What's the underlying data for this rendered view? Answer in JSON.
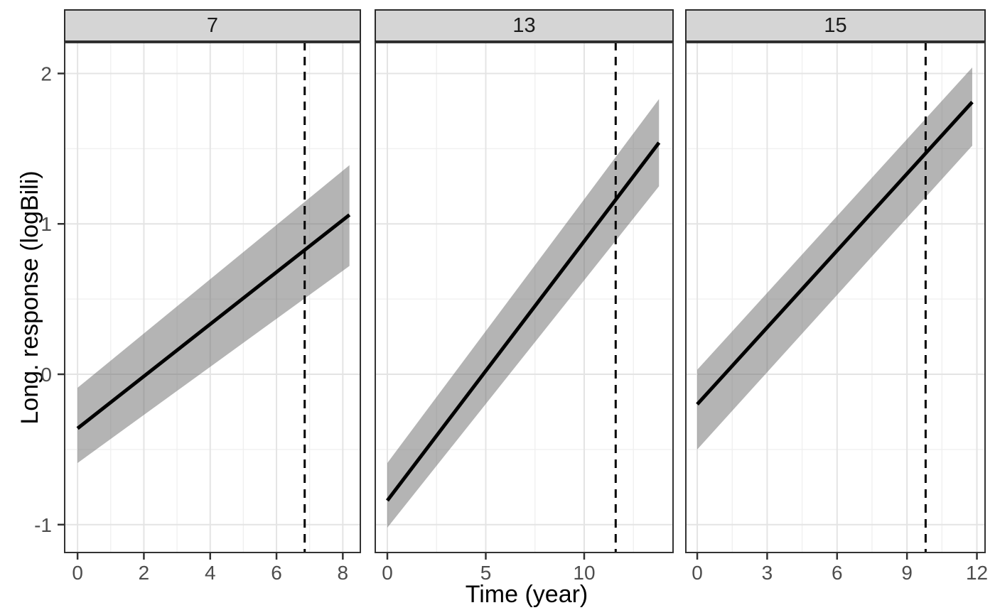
{
  "chart_data": {
    "type": "line",
    "title": "",
    "xlabel": "Time (year)",
    "ylabel": "Long. response (logBili)",
    "grid": "major and minor, light gray, panel border black, ggplot theme_bw style",
    "legend": "none",
    "y_ticks": [
      2,
      1,
      0,
      -1
    ],
    "y_minor": [
      1.5,
      0.5,
      -0.5
    ],
    "y_range": [
      -1.19,
      2.21
    ],
    "facets": [
      {
        "label": "7",
        "x_ticks": [
          0,
          2,
          4,
          6,
          8
        ],
        "x_minor": [
          1,
          3,
          5,
          7
        ],
        "x_range": [
          -0.41,
          8.55
        ],
        "line": {
          "x": [
            0,
            8.2
          ],
          "y": [
            -0.36,
            1.06
          ]
        },
        "ribbon": {
          "x": [
            0,
            8.2
          ],
          "upper": [
            -0.09,
            1.39
          ],
          "lower": [
            -0.59,
            0.72
          ]
        },
        "vline_x": 6.85
      },
      {
        "label": "13",
        "x_ticks": [
          0,
          5,
          10
        ],
        "x_minor": [
          2.5,
          7.5,
          12.5
        ],
        "x_range": [
          -0.65,
          14.55
        ],
        "line": {
          "x": [
            0,
            13.8
          ],
          "y": [
            -0.84,
            1.54
          ]
        },
        "ribbon": {
          "x": [
            0,
            13.8
          ],
          "upper": [
            -0.59,
            1.83
          ],
          "lower": [
            -1.02,
            1.25
          ]
        },
        "vline_x": 11.6
      },
      {
        "label": "15",
        "x_ticks": [
          0,
          3,
          6,
          9,
          12
        ],
        "x_minor": [
          1.5,
          4.5,
          7.5,
          10.5
        ],
        "x_range": [
          -0.52,
          12.38
        ],
        "line": {
          "x": [
            0,
            11.8
          ],
          "y": [
            -0.2,
            1.81
          ]
        },
        "ribbon": {
          "x": [
            0,
            11.8
          ],
          "upper": [
            0.03,
            2.04
          ],
          "lower": [
            -0.5,
            1.52
          ]
        },
        "vline_x": 9.8
      }
    ],
    "colors": {
      "line": "#000000",
      "vline": "#000000",
      "ribbon": "#696969",
      "ribbon_opacity": 0.5,
      "strip_bg": "#D5D5D5",
      "strip_border": "#2B2B2B",
      "panel_border": "#333333",
      "grid_major": "#E4E4E4",
      "grid_minor": "#EFEFEF",
      "tick_mark": "#333333",
      "tick_label": "#4D4D4D",
      "axis_title": "#000000"
    }
  }
}
